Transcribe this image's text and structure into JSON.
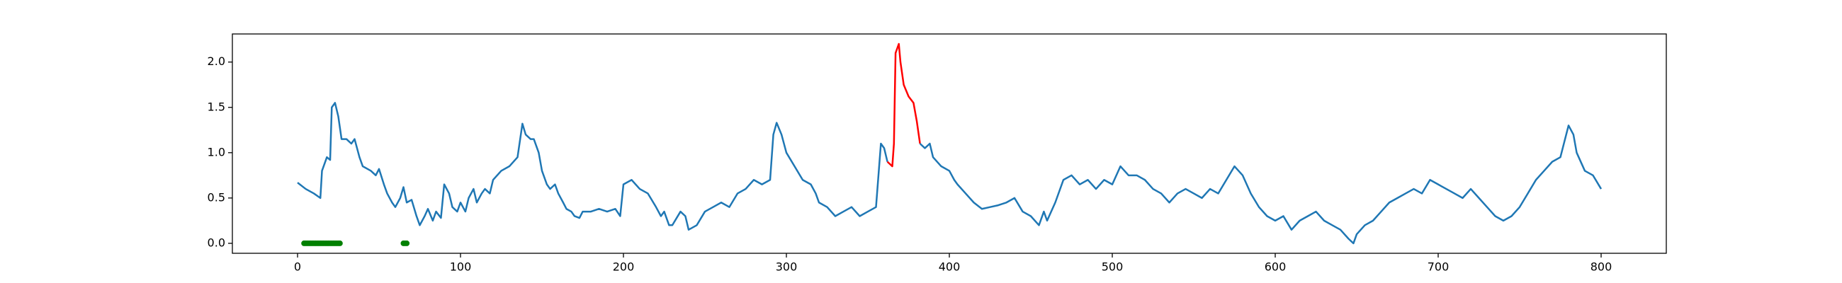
{
  "chart_data": {
    "type": "line",
    "xlim": [
      -40,
      840
    ],
    "ylim": [
      -0.11,
      2.31
    ],
    "xticks": [
      0,
      100,
      200,
      300,
      400,
      500,
      600,
      700,
      800
    ],
    "yticks": [
      {
        "value": 0,
        "label": "0.0"
      },
      {
        "value": 0.5,
        "label": "0.5"
      },
      {
        "value": 1,
        "label": "1.0"
      },
      {
        "value": 1.5,
        "label": "1.5"
      },
      {
        "value": 2,
        "label": "2.0"
      }
    ],
    "grid": false,
    "series": [
      {
        "style": "line",
        "color": "#1f77b4",
        "x": [
          0,
          5,
          10,
          14,
          15,
          18,
          20,
          21,
          23,
          25,
          27,
          30,
          33,
          35,
          38,
          40,
          45,
          48,
          50,
          53,
          55,
          58,
          60,
          63,
          65,
          67,
          70,
          73,
          75,
          78,
          80,
          83,
          85,
          88,
          90,
          93,
          95,
          98,
          100,
          103,
          105,
          108,
          110,
          113,
          115,
          118,
          120,
          125,
          130,
          135,
          138,
          140,
          143,
          145,
          148,
          150,
          153,
          155,
          158,
          160,
          163,
          165,
          168,
          170,
          173,
          175,
          180,
          185,
          190,
          195,
          198,
          200,
          205,
          210,
          215,
          220,
          223,
          225,
          228,
          230,
          235,
          238,
          240,
          245,
          250,
          255,
          260,
          265,
          270,
          275,
          280,
          285,
          290,
          292,
          294,
          297,
          300,
          305,
          310,
          315,
          318,
          320,
          325,
          330,
          335,
          340,
          345,
          350,
          355,
          358,
          360,
          362
        ],
        "values": [
          0.67,
          0.6,
          0.55,
          0.5,
          0.8,
          0.95,
          0.92,
          1.5,
          1.55,
          1.4,
          1.15,
          1.15,
          1.1,
          1.15,
          0.95,
          0.85,
          0.8,
          0.75,
          0.82,
          0.65,
          0.55,
          0.45,
          0.4,
          0.5,
          0.62,
          0.45,
          0.48,
          0.3,
          0.2,
          0.3,
          0.38,
          0.25,
          0.35,
          0.28,
          0.65,
          0.55,
          0.4,
          0.35,
          0.45,
          0.35,
          0.5,
          0.6,
          0.45,
          0.55,
          0.6,
          0.55,
          0.7,
          0.8,
          0.85,
          0.95,
          1.32,
          1.2,
          1.15,
          1.15,
          1.0,
          0.8,
          0.65,
          0.6,
          0.65,
          0.55,
          0.45,
          0.38,
          0.35,
          0.3,
          0.28,
          0.35,
          0.35,
          0.38,
          0.35,
          0.38,
          0.3,
          0.65,
          0.7,
          0.6,
          0.55,
          0.4,
          0.3,
          0.35,
          0.2,
          0.2,
          0.35,
          0.3,
          0.15,
          0.2,
          0.35,
          0.4,
          0.45,
          0.4,
          0.55,
          0.6,
          0.7,
          0.65,
          0.7,
          1.2,
          1.33,
          1.2,
          1.0,
          0.85,
          0.7,
          0.65,
          0.55,
          0.45,
          0.4,
          0.3,
          0.35,
          0.4,
          0.3,
          0.35,
          0.4,
          1.1,
          1.05,
          0.9
        ]
      },
      {
        "style": "line",
        "color": "#ff0000",
        "x": [
          362,
          365,
          366,
          367,
          368,
          369,
          370,
          372,
          375,
          378,
          380,
          382
        ],
        "values": [
          0.9,
          0.85,
          1.1,
          2.1,
          2.15,
          2.2,
          2.0,
          1.75,
          1.62,
          1.55,
          1.35,
          1.1
        ]
      },
      {
        "style": "line",
        "color": "#1f77b4",
        "x": [
          382,
          385,
          388,
          390,
          395,
          400,
          403,
          405,
          410,
          415,
          420,
          425,
          430,
          435,
          440,
          445,
          450,
          455,
          458,
          460,
          465,
          470,
          475,
          480,
          485,
          490,
          495,
          500,
          505,
          510,
          515,
          520,
          525,
          530,
          535,
          540,
          545,
          550,
          555,
          560,
          565,
          570,
          575,
          580,
          585,
          590,
          595,
          600,
          605,
          610,
          615,
          620,
          625,
          630,
          635,
          640,
          645,
          648,
          650,
          655,
          660,
          665,
          670,
          675,
          680,
          685,
          690,
          695,
          700,
          705,
          710,
          715,
          720,
          725,
          730,
          735,
          740,
          745,
          750,
          755,
          760,
          765,
          770,
          775,
          780,
          783,
          785,
          790,
          795,
          800
        ],
        "values": [
          1.1,
          1.05,
          1.1,
          0.95,
          0.85,
          0.8,
          0.7,
          0.65,
          0.55,
          0.45,
          0.38,
          0.4,
          0.42,
          0.45,
          0.5,
          0.35,
          0.3,
          0.2,
          0.35,
          0.25,
          0.45,
          0.7,
          0.75,
          0.65,
          0.7,
          0.6,
          0.7,
          0.65,
          0.85,
          0.75,
          0.75,
          0.7,
          0.6,
          0.55,
          0.45,
          0.55,
          0.6,
          0.55,
          0.5,
          0.6,
          0.55,
          0.7,
          0.85,
          0.75,
          0.55,
          0.4,
          0.3,
          0.25,
          0.3,
          0.15,
          0.25,
          0.3,
          0.35,
          0.25,
          0.2,
          0.15,
          0.05,
          0.0,
          0.1,
          0.2,
          0.25,
          0.35,
          0.45,
          0.5,
          0.55,
          0.6,
          0.55,
          0.7,
          0.65,
          0.6,
          0.55,
          0.5,
          0.6,
          0.5,
          0.4,
          0.3,
          0.25,
          0.3,
          0.4,
          0.55,
          0.7,
          0.8,
          0.9,
          0.95,
          1.3,
          1.2,
          1.0,
          0.8,
          0.75,
          0.6
        ]
      },
      {
        "style": "scatter",
        "color": "#008000",
        "x": [
          4,
          5,
          6,
          7,
          8,
          9,
          10,
          11,
          12,
          13,
          14,
          15,
          16,
          17,
          18,
          19,
          20,
          21,
          22,
          23,
          24,
          25,
          26,
          65,
          66,
          67
        ],
        "values": [
          0,
          0,
          0,
          0,
          0,
          0,
          0,
          0,
          0,
          0,
          0,
          0,
          0,
          0,
          0,
          0,
          0,
          0,
          0,
          0,
          0,
          0,
          0,
          0,
          0,
          0
        ]
      }
    ]
  }
}
